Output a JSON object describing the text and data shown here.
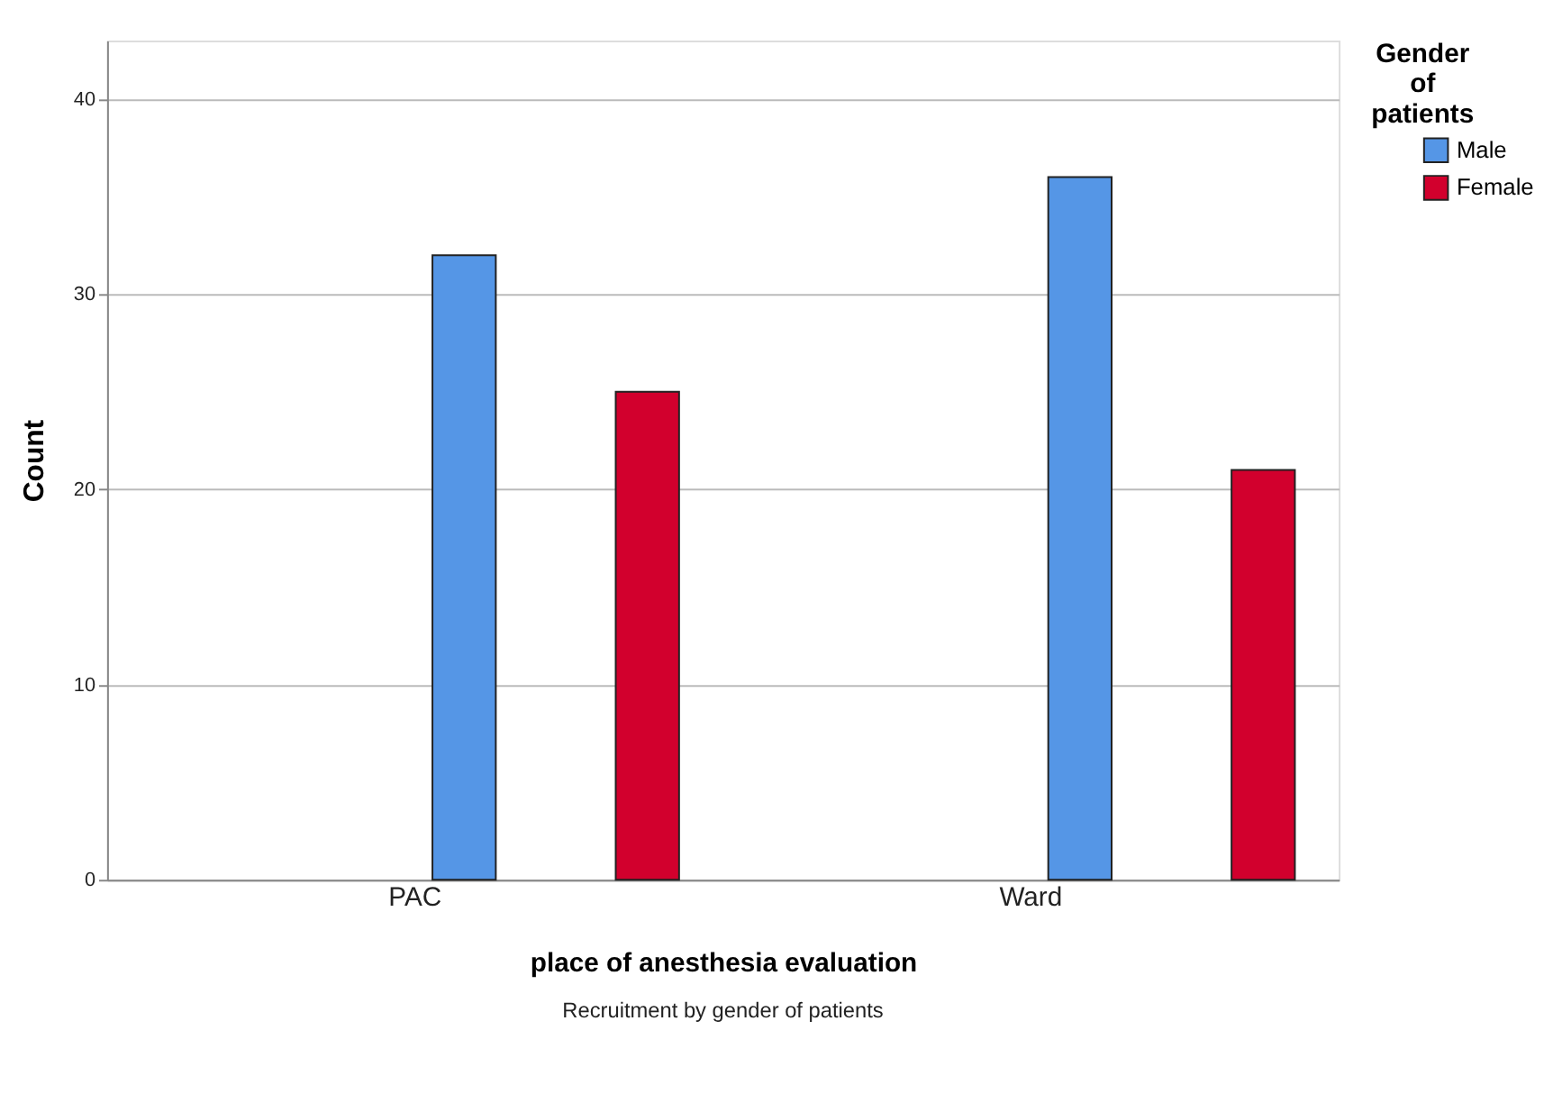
{
  "chart_data": {
    "type": "bar",
    "xlabel": "place of anesthesia evaluation",
    "ylabel": "Count",
    "legend_title": "Gender of patients",
    "categories": [
      "PAC",
      "Ward"
    ],
    "series": [
      {
        "name": "Male",
        "color": "#5596e6",
        "values": [
          32,
          36
        ]
      },
      {
        "name": "Female",
        "color": "#d2002d",
        "values": [
          25,
          21
        ]
      }
    ],
    "ylim": [
      0,
      43
    ],
    "yticks": [
      0,
      10,
      20,
      30,
      40
    ],
    "grid": "y",
    "legend": "top right",
    "annotations": [
      "Recruitment by gender of patients"
    ]
  }
}
